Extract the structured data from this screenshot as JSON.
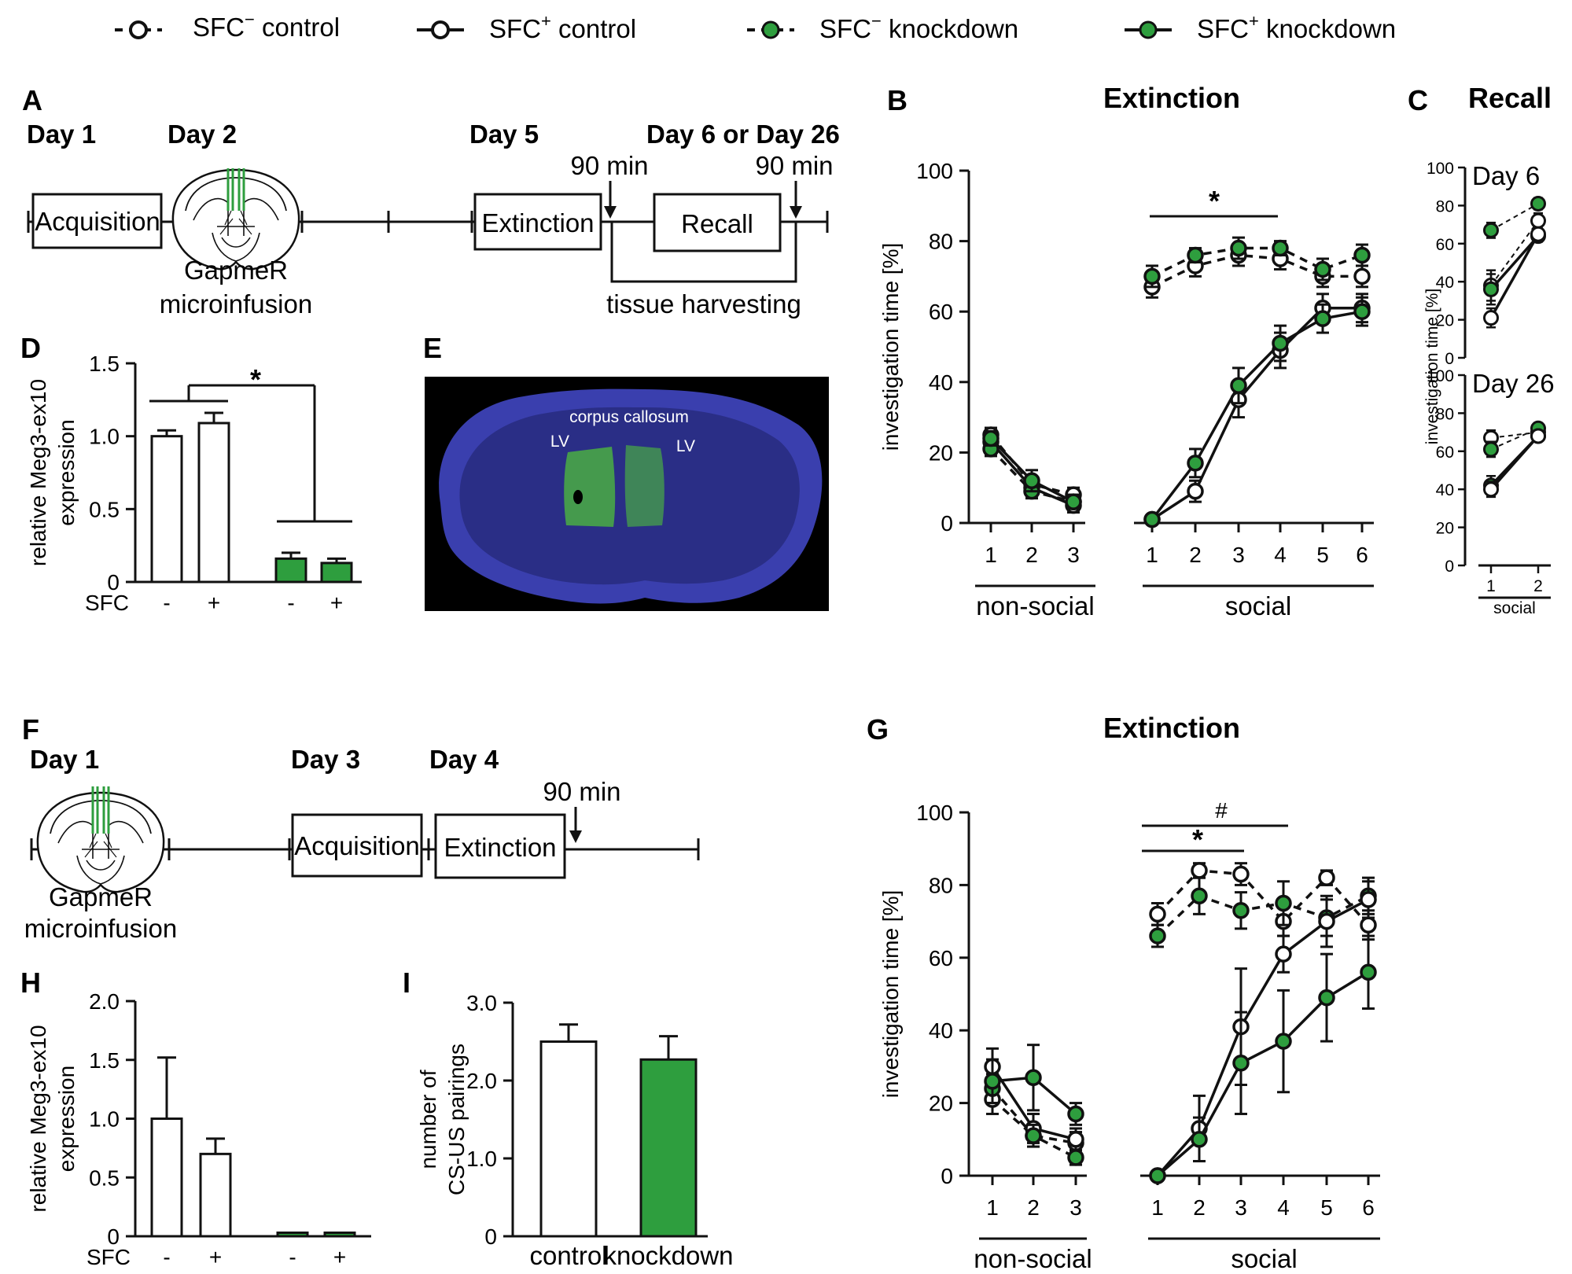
{
  "legend": [
    {
      "text": "SFC",
      "sup": "−",
      "rest": " control",
      "style": "open-dashed"
    },
    {
      "text": "SFC",
      "sup": "+",
      "rest": " control",
      "style": "open-solid"
    },
    {
      "text": "SFC",
      "sup": "−",
      "rest": " knockdown",
      "style": "green-dashed"
    },
    {
      "text": "SFC",
      "sup": "+",
      "rest": " knockdown",
      "style": "green-solid"
    }
  ],
  "colors": {
    "green": "#2e9e3e",
    "open": "#ffffff",
    "stroke": "#111111",
    "blue_tissue": "#3a3fae",
    "green_tissue": "#4fbf3a"
  },
  "panel_a": {
    "letter": "A",
    "day1": "Day 1",
    "day2": "Day 2",
    "day5": "Day 5",
    "day6": "Day 6 or Day 26",
    "acquisition": "Acquisition",
    "extinction": "Extinction",
    "recall": "Recall",
    "gapmer1": "GapmeR",
    "gapmer2": "microinfusion",
    "min1": "90 min",
    "min2": "90 min",
    "harvest": "tissue harvesting"
  },
  "panel_e": {
    "letter": "E",
    "corpus": "corpus callosum",
    "lv_left": "LV",
    "lv_right": "LV"
  },
  "panel_f": {
    "letter": "F",
    "day1": "Day 1",
    "day3": "Day 3",
    "day4": "Day 4",
    "acquisition": "Acquisition",
    "extinction": "Extinction",
    "gapmer1": "GapmeR",
    "gapmer2": "microinfusion",
    "min": "90 min"
  },
  "chart_data": [
    {
      "id": "D",
      "letter": "D",
      "type": "bar",
      "ylim": [
        0,
        1.5
      ],
      "yticks": [
        0,
        0.5,
        1.0,
        1.5
      ],
      "ytick_labels": [
        "0",
        "0.5",
        "1.0",
        "1.5"
      ],
      "ylabel": [
        "relative Meg3-ex10",
        "expression"
      ],
      "xlabel": "SFC",
      "categories": [
        "-",
        "+",
        "-",
        "+"
      ],
      "values": [
        1.0,
        1.09,
        0.16,
        0.13
      ],
      "errors": [
        0.04,
        0.07,
        0.04,
        0.03
      ],
      "fills": [
        "open",
        "open",
        "green",
        "green"
      ],
      "annotation": "*"
    },
    {
      "id": "B",
      "letter": "B",
      "type": "line",
      "title": "Extinction",
      "ylim": [
        0,
        100
      ],
      "yticks": [
        0,
        20,
        40,
        60,
        80,
        100
      ],
      "ytick_labels": [
        "0",
        "20",
        "40",
        "60",
        "80",
        "100"
      ],
      "ylabel": "investigation time [%]",
      "groups": [
        {
          "label": "non-social",
          "ticks": [
            "1",
            "2",
            "3"
          ]
        },
        {
          "label": "social",
          "ticks": [
            "1",
            "2",
            "3",
            "4",
            "5",
            "6"
          ]
        }
      ],
      "series": [
        {
          "name": "SFC− control nonsocial",
          "group": 0,
          "style": "open-dashed",
          "values": [
            25,
            11,
            8
          ],
          "errors": [
            2,
            2,
            2
          ]
        },
        {
          "name": "SFC+ control nonsocial",
          "group": 0,
          "style": "open-solid",
          "values": [
            23,
            10,
            5
          ],
          "errors": [
            2,
            2,
            2
          ]
        },
        {
          "name": "SFC− knockdown nonsocial",
          "group": 0,
          "style": "green-dashed",
          "values": [
            21,
            9,
            6
          ],
          "errors": [
            2,
            2,
            2
          ]
        },
        {
          "name": "SFC+ knockdown nonsocial",
          "group": 0,
          "style": "green-solid",
          "values": [
            24,
            12,
            6
          ],
          "errors": [
            2,
            3,
            2
          ]
        },
        {
          "name": "SFC− control social",
          "group": 1,
          "style": "open-dashed",
          "values": [
            67,
            73,
            76,
            75,
            70,
            70
          ],
          "errors": [
            3,
            3,
            3,
            3,
            3,
            3
          ]
        },
        {
          "name": "SFC− knockdown social",
          "group": 1,
          "style": "green-dashed",
          "values": [
            70,
            76,
            78,
            78,
            72,
            76
          ],
          "errors": [
            3,
            2,
            3,
            2,
            3,
            3
          ]
        },
        {
          "name": "SFC+ control social",
          "group": 1,
          "style": "open-solid",
          "values": [
            1,
            9,
            35,
            49,
            61,
            61
          ],
          "errors": [
            1,
            3,
            5,
            5,
            4,
            4
          ]
        },
        {
          "name": "SFC+ knockdown social",
          "group": 1,
          "style": "green-solid",
          "values": [
            1,
            17,
            39,
            51,
            58,
            60
          ],
          "errors": [
            1,
            4,
            5,
            5,
            4,
            4
          ]
        }
      ],
      "annotation": "*"
    },
    {
      "id": "C",
      "letter": "C",
      "type": "line",
      "title": "Recall",
      "ylabel": "investigation time [%]",
      "xlabel": "social",
      "x": [
        "1",
        "2"
      ],
      "subplots": [
        {
          "title": "Day 6",
          "ylim": [
            0,
            100
          ],
          "yticks": [
            0,
            20,
            40,
            60,
            80,
            100
          ],
          "ytick_labels": [
            "0",
            "20",
            "40",
            "60",
            "80",
            "100"
          ],
          "series": [
            {
              "style": "green-dashed",
              "values": [
                67,
                81
              ],
              "errors": [
                4,
                3
              ]
            },
            {
              "style": "open-dashed",
              "values": [
                38,
                72
              ],
              "errors": [
                8,
                4
              ]
            },
            {
              "style": "green-solid",
              "values": [
                36,
                64
              ],
              "errors": [
                8,
                3
              ]
            },
            {
              "style": "open-solid",
              "values": [
                21,
                65
              ],
              "errors": [
                5,
                3
              ]
            }
          ]
        },
        {
          "title": "Day 26",
          "ylim": [
            0,
            100
          ],
          "yticks": [
            0,
            20,
            40,
            60,
            80,
            100
          ],
          "ytick_labels": [
            "0",
            "20",
            "40",
            "60",
            "80",
            "100"
          ],
          "series": [
            {
              "style": "open-dashed",
              "values": [
                67,
                70
              ],
              "errors": [
                4,
                2
              ]
            },
            {
              "style": "green-dashed",
              "values": [
                61,
                72
              ],
              "errors": [
                4,
                2
              ]
            },
            {
              "style": "green-solid",
              "values": [
                42,
                68
              ],
              "errors": [
                5,
                2
              ]
            },
            {
              "style": "open-solid",
              "values": [
                40,
                68
              ],
              "errors": [
                4,
                2
              ]
            }
          ]
        }
      ]
    },
    {
      "id": "G",
      "letter": "G",
      "type": "line",
      "title": "Extinction",
      "ylim": [
        0,
        100
      ],
      "yticks": [
        0,
        20,
        40,
        60,
        80,
        100
      ],
      "ytick_labels": [
        "0",
        "20",
        "40",
        "60",
        "80",
        "100"
      ],
      "ylabel": "investigation time [%]",
      "groups": [
        {
          "label": "non-social",
          "ticks": [
            "1",
            "2",
            "3"
          ]
        },
        {
          "label": "social",
          "ticks": [
            "1",
            "2",
            "3",
            "4",
            "5",
            "6"
          ]
        }
      ],
      "series": [
        {
          "name": "SFC− control nonsocial",
          "group": 0,
          "style": "open-dashed",
          "values": [
            21,
            11,
            9
          ],
          "errors": [
            4,
            3,
            3
          ]
        },
        {
          "name": "SFC+ control nonsocial",
          "group": 0,
          "style": "open-solid",
          "values": [
            30,
            13,
            10
          ],
          "errors": [
            5,
            4,
            3
          ]
        },
        {
          "name": "SFC− knockdown nonsocial",
          "group": 0,
          "style": "green-dashed",
          "values": [
            24,
            11,
            5
          ],
          "errors": [
            4,
            3,
            2
          ]
        },
        {
          "name": "SFC+ knockdown nonsocial",
          "group": 0,
          "style": "green-solid",
          "values": [
            26,
            27,
            17
          ],
          "errors": [
            6,
            9,
            3
          ]
        },
        {
          "name": "SFC− control social",
          "group": 1,
          "style": "open-dashed",
          "values": [
            72,
            84,
            83,
            70,
            82,
            69
          ],
          "errors": [
            3,
            2,
            3,
            4,
            2,
            4
          ]
        },
        {
          "name": "SFC− knockdown social",
          "group": 1,
          "style": "green-dashed",
          "values": [
            66,
            77,
            73,
            75,
            71,
            77
          ],
          "errors": [
            3,
            5,
            5,
            6,
            5,
            5
          ]
        },
        {
          "name": "SFC+ control social",
          "group": 1,
          "style": "open-solid",
          "values": [
            0,
            13,
            41,
            61,
            70,
            76
          ],
          "errors": [
            1,
            9,
            16,
            5,
            7,
            5
          ]
        },
        {
          "name": "SFC+ knockdown social",
          "group": 1,
          "style": "green-solid",
          "values": [
            0,
            10,
            31,
            37,
            49,
            56
          ],
          "errors": [
            1,
            6,
            14,
            14,
            12,
            10
          ]
        }
      ],
      "annotations": [
        "#",
        "*"
      ]
    },
    {
      "id": "H",
      "letter": "H",
      "type": "bar",
      "ylim": [
        0,
        2.0
      ],
      "yticks": [
        0,
        0.5,
        1.0,
        1.5,
        2.0
      ],
      "ytick_labels": [
        "0",
        "0.5",
        "1.0",
        "1.5",
        "2.0"
      ],
      "ylabel": [
        "relative Meg3-ex10",
        "expression"
      ],
      "xlabel": "SFC",
      "categories": [
        "-",
        "+",
        "-",
        "+"
      ],
      "values": [
        1.0,
        0.7,
        0.03,
        0.03
      ],
      "errors": [
        0.52,
        0.13,
        0.0,
        0.0
      ],
      "fills": [
        "open",
        "open",
        "green",
        "green"
      ]
    },
    {
      "id": "I",
      "letter": "I",
      "type": "bar",
      "ylim": [
        0,
        3.0
      ],
      "yticks": [
        0,
        1.0,
        2.0,
        3.0
      ],
      "ytick_labels": [
        "0",
        "1.0",
        "2.0",
        "3.0"
      ],
      "ylabel": [
        "number of",
        "CS-US pairings"
      ],
      "categories": [
        "control",
        "knockdown"
      ],
      "values": [
        2.5,
        2.27
      ],
      "errors": [
        0.22,
        0.3
      ],
      "fills": [
        "open",
        "green"
      ]
    }
  ]
}
